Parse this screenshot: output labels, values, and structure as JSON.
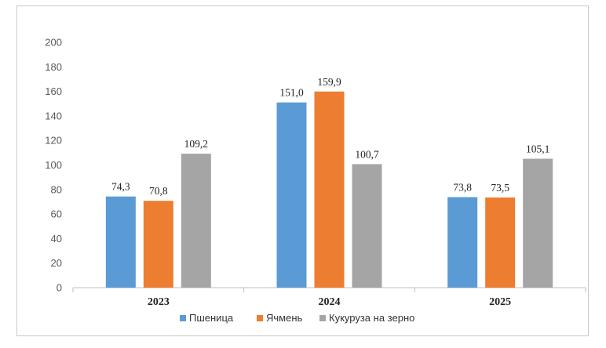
{
  "chart_data": {
    "type": "bar",
    "categories": [
      "2023",
      "2024",
      "2025"
    ],
    "series": [
      {
        "name": "Пшеница",
        "values": [
          74.3,
          151.0,
          73.8
        ],
        "labels": [
          "74,3",
          "151,0",
          "73,8"
        ],
        "color": "#5b9bd5"
      },
      {
        "name": "Ячмень",
        "values": [
          70.8,
          159.9,
          73.5
        ],
        "labels": [
          "70,8",
          "159,9",
          "73,5"
        ],
        "color": "#ed7d31"
      },
      {
        "name": "Кукуруза на зерно",
        "values": [
          109.2,
          100.7,
          105.1
        ],
        "labels": [
          "109,2",
          "100,7",
          "105,1"
        ],
        "color": "#a5a5a5"
      }
    ],
    "ylim": [
      0,
      200
    ],
    "yticks": [
      "0",
      "20",
      "40",
      "60",
      "80",
      "100",
      "120",
      "140",
      "160",
      "180",
      "200"
    ],
    "grid": false,
    "legend_position": "bottom",
    "title": "",
    "xlabel": "",
    "ylabel": ""
  }
}
